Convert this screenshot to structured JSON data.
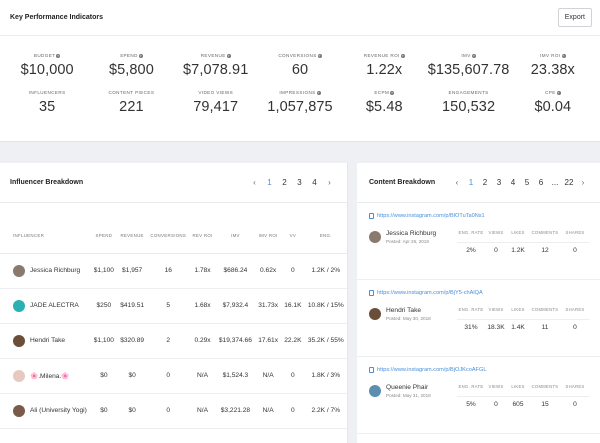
{
  "kpi": {
    "title": "Key Performance Indicators",
    "export_label": "Export",
    "items": [
      {
        "label": "BUDGET",
        "info": true,
        "value": "$10,000"
      },
      {
        "label": "SPEND",
        "info": true,
        "value": "$5,800"
      },
      {
        "label": "REVENUE",
        "info": true,
        "value": "$7,078.91"
      },
      {
        "label": "CONVERSIONS",
        "info": true,
        "value": "60"
      },
      {
        "label": "REVENUE ROI",
        "info": true,
        "value": "1.22x"
      },
      {
        "label": "IMV",
        "info": true,
        "value": "$135,607.78"
      },
      {
        "label": "IMV ROI",
        "info": true,
        "value": "23.38x"
      },
      {
        "label": "INFLUENCERS",
        "info": false,
        "value": "35"
      },
      {
        "label": "CONTENT PIECES",
        "info": false,
        "value": "221"
      },
      {
        "label": "VIDEO VIEWS",
        "info": false,
        "value": "79,417"
      },
      {
        "label": "IMPRESSIONS",
        "info": true,
        "value": "1,057,875"
      },
      {
        "label": "ECPM",
        "info": true,
        "value": "$5.48"
      },
      {
        "label": "ENGAGEMENTS",
        "info": false,
        "value": "150,532"
      },
      {
        "label": "CPE",
        "info": true,
        "value": "$0.04"
      }
    ]
  },
  "influencers": {
    "title": "Influencer Breakdown",
    "pagination": {
      "pages": [
        "1",
        "2",
        "3",
        "4"
      ],
      "active": "1",
      "prev": "‹",
      "next": "›"
    },
    "columns": [
      "INFLUENCER",
      "SPEND",
      "REVENUE",
      "CONVERSIONS",
      "REV ROI",
      "IMV",
      "IMV ROI",
      "VV",
      "ENG."
    ],
    "rows": [
      {
        "name": "Jessica Richburg",
        "avatar_color": "#8a7a6e",
        "spend": "$1,100",
        "revenue": "$1,957",
        "conversions": "16",
        "rev_roi": "1.78x",
        "imv": "$686.24",
        "imv_roi": "0.62x",
        "vv": "0",
        "eng": "1.2K / 2%"
      },
      {
        "name": "JADE ALECTRA",
        "avatar_color": "#2ab0b0",
        "spend": "$250",
        "revenue": "$419.51",
        "conversions": "5",
        "rev_roi": "1.68x",
        "imv": "$7,932.4",
        "imv_roi": "31.73x",
        "vv": "16.1K",
        "eng": "10.8K / 15%"
      },
      {
        "name": "Hendri Take",
        "avatar_color": "#6b4e3a",
        "spend": "$1,100",
        "revenue": "$320.89",
        "conversions": "2",
        "rev_roi": "0.29x",
        "imv": "$19,374.66",
        "imv_roi": "17.61x",
        "vv": "22.2K",
        "eng": "35.2K / 55%"
      },
      {
        "name": "🌸.Milena.🌸",
        "avatar_color": "#e8c9c0",
        "spend": "$0",
        "revenue": "$0",
        "conversions": "0",
        "rev_roi": "N/A",
        "imv": "$1,524.3",
        "imv_roi": "N/A",
        "vv": "0",
        "eng": "1.8K / 3%"
      },
      {
        "name": "Ali (University Yogi)",
        "avatar_color": "#7a5a48",
        "spend": "$0",
        "revenue": "$0",
        "conversions": "0",
        "rev_roi": "N/A",
        "imv": "$3,221.28",
        "imv_roi": "N/A",
        "vv": "0",
        "eng": "2.2K / 7%"
      }
    ]
  },
  "content": {
    "title": "Content Breakdown",
    "pagination": {
      "pages": [
        "1",
        "2",
        "3",
        "4",
        "5",
        "6",
        "...",
        "22"
      ],
      "active": "1",
      "prev": "‹",
      "next": "›"
    },
    "stat_labels": [
      "ENG. RATE",
      "VIEWS",
      "LIKES",
      "COMMENTS",
      "SHARES"
    ],
    "posts": [
      {
        "url": "https://www.instagram.com/p/BlOTuTa0Ns1",
        "author": "Jessica Richburg",
        "date": "Posted: Apr 26, 2018",
        "avatar_color": "#8a7a6e",
        "stats": [
          "2%",
          "0",
          "1.2K",
          "12",
          "0"
        ]
      },
      {
        "url": "https://www.instagram.com/p/BjY5-chAlQA",
        "author": "Hendri Take",
        "date": "Posted: May 30, 2018",
        "avatar_color": "#6b4e3a",
        "stats": [
          "31%",
          "18.3K",
          "1.4K",
          "11",
          "0"
        ]
      },
      {
        "url": "https://www.instagram.com/p/BjOJKcoAFGL",
        "author": "Queenie Phair",
        "date": "Posted: May 31, 2018",
        "avatar_color": "#5a8fb0",
        "stats": [
          "5%",
          "0",
          "605",
          "15",
          "0"
        ]
      }
    ]
  }
}
